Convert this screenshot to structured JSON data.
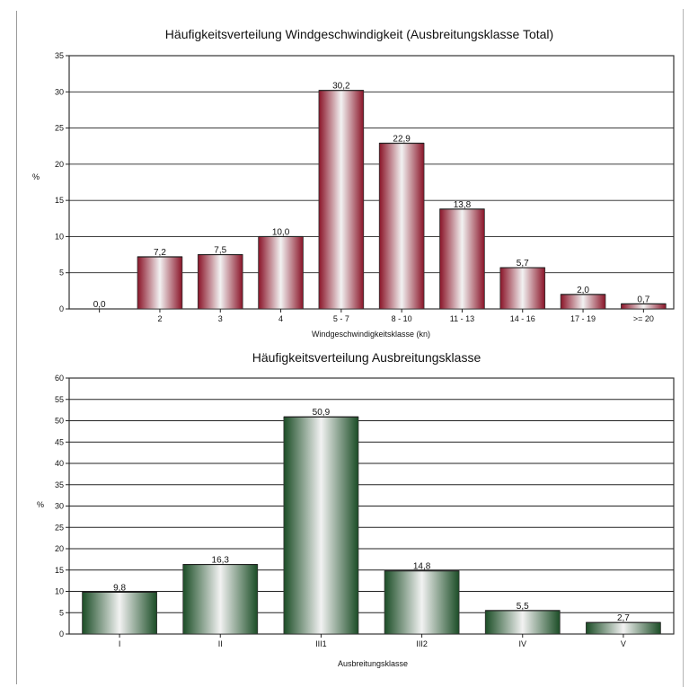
{
  "chart_data": [
    {
      "type": "bar",
      "title": "Häufigkeitsverteilung Windgeschwindigkeit (Ausbreitungsklasse Total)",
      "xlabel": "Windgeschwindigkeitsklasse (kn)",
      "ylabel": "%",
      "ylim": [
        0,
        35
      ],
      "yticks": [
        "0",
        "5",
        "10",
        "15",
        "20",
        "25",
        "30",
        "35"
      ],
      "categories": [
        "",
        "2",
        "3",
        "4",
        "5 - 7",
        "8 - 10",
        "11 - 13",
        "14 - 16",
        "17 - 19",
        ">= 20"
      ],
      "values": [
        0.0,
        7.2,
        7.5,
        10.0,
        30.2,
        22.9,
        13.8,
        5.7,
        2.0,
        0.7
      ],
      "value_labels": [
        "0,0",
        "7,2",
        "7,5",
        "10,0",
        "30,2",
        "22,9",
        "13,8",
        "5,7",
        "2,0",
        "0,7"
      ],
      "grid": true,
      "bar_color": "#9b1b30"
    },
    {
      "type": "bar",
      "title": "Häufigkeitsverteilung Ausbreitungsklasse",
      "xlabel": "Ausbreitungsklasse",
      "ylabel": "%",
      "ylim": [
        0,
        60
      ],
      "yticks": [
        "0",
        "5",
        "10",
        "15",
        "20",
        "25",
        "30",
        "35",
        "40",
        "45",
        "50",
        "55",
        "60"
      ],
      "categories": [
        "I",
        "II",
        "III1",
        "III2",
        "IV",
        "V"
      ],
      "values": [
        9.8,
        16.3,
        50.9,
        14.8,
        5.5,
        2.7
      ],
      "value_labels": [
        "9,8",
        "16,3",
        "50,9",
        "14,8",
        "5,5",
        "2,7"
      ],
      "grid": true,
      "bar_color": "#1f5a2e"
    }
  ]
}
